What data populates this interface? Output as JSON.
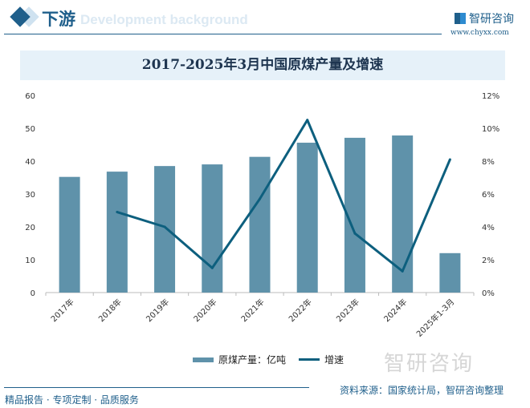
{
  "header": {
    "section_title": "下游",
    "section_subtitle": "Development background",
    "brand": "智研咨询",
    "url": "www.chyxx.com"
  },
  "colors": {
    "bar": "#5f92aa",
    "line": "#0d5f7e",
    "accent": "#1f5f8b"
  },
  "chart_data": {
    "type": "bar+line",
    "title": "2017-2025年3月中国原煤产量及增速",
    "categories": [
      "2017年",
      "2018年",
      "2019年",
      "2020年",
      "2021年",
      "2022年",
      "2023年",
      "2024年",
      "2025年1-3月"
    ],
    "series": [
      {
        "name": "原煤产量：亿吨",
        "type": "bar",
        "axis": "left",
        "values": [
          35.2,
          36.8,
          38.5,
          39.0,
          41.3,
          45.6,
          47.1,
          47.8,
          12.0
        ]
      },
      {
        "name": "增速",
        "type": "line",
        "axis": "right",
        "values": [
          null,
          4.9,
          4.0,
          1.5,
          5.7,
          10.5,
          3.6,
          1.3,
          8.1
        ]
      }
    ],
    "ylim": [
      0,
      60
    ],
    "yticks": [
      "0",
      "10",
      "20",
      "30",
      "40",
      "50",
      "60"
    ],
    "y2lim": [
      0,
      12
    ],
    "y2ticks": [
      "0%",
      "2%",
      "4%",
      "6%",
      "8%",
      "10%",
      "12%"
    ],
    "grid": false,
    "legend": "bottom"
  },
  "footer": {
    "slogan": "精品报告 · 专项定制 · 品质服务",
    "source": "资料来源：国家统计局，智研咨询整理",
    "watermark": "智研咨询"
  }
}
